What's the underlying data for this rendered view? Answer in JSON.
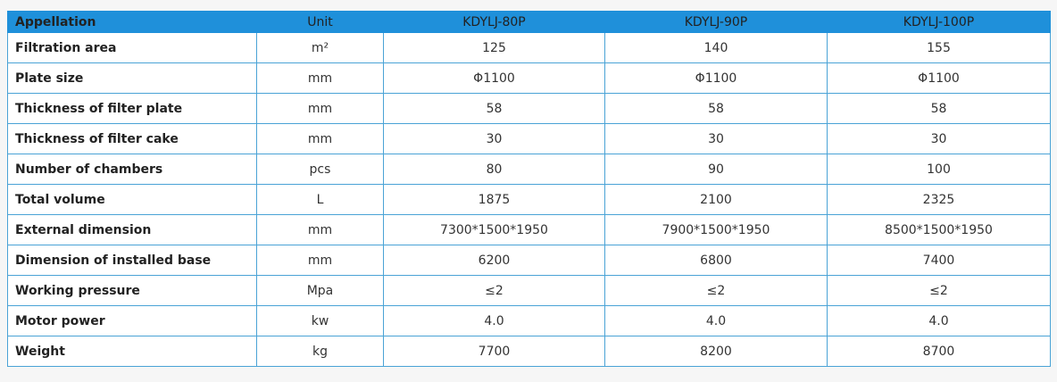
{
  "table": {
    "header": [
      "Appellation",
      "Unit",
      "KDYLJ-80P",
      "KDYLJ-90P",
      "KDYLJ-100P"
    ],
    "rows": [
      [
        "Filtration area",
        "m²",
        "125",
        "140",
        "155"
      ],
      [
        "Plate size",
        "mm",
        "Φ1100",
        "Φ1100",
        "Φ1100"
      ],
      [
        "Thickness of filter plate",
        "mm",
        "58",
        "58",
        "58"
      ],
      [
        "Thickness of filter cake",
        "mm",
        "30",
        "30",
        "30"
      ],
      [
        "Number of chambers",
        "pcs",
        "80",
        "90",
        "100"
      ],
      [
        "Total volume",
        "L",
        "1875",
        "2100",
        "2325"
      ],
      [
        "External dimension",
        "mm",
        "7300*1500*1950",
        "7900*1500*1950",
        "8500*1500*1950"
      ],
      [
        "Dimension of installed base",
        "mm",
        "6200",
        "6800",
        "7400"
      ],
      [
        "Working pressure",
        "Mpa",
        "≤2",
        "≤2",
        "≤2"
      ],
      [
        "Motor power",
        "kw",
        "4.0",
        "4.0",
        "4.0"
      ],
      [
        "Weight",
        "kg",
        "7700",
        "8200",
        "8700"
      ]
    ]
  }
}
